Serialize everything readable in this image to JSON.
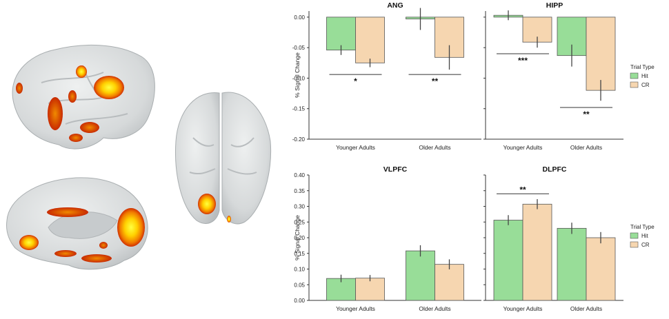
{
  "colors": {
    "hit": "#98dd98",
    "cr": "#f6d6b0",
    "bar_stroke": "#555555",
    "axis": "#333333",
    "brain": "#d9dcdd",
    "activation_hot": "#ffee00",
    "activation_mid": "#f2a100",
    "activation_edge": "#d43a00"
  },
  "legend": {
    "title": "Trial Type",
    "items": [
      "Hit",
      "CR"
    ]
  },
  "brain_images": {
    "lateral_view": "brain-lateral-icon",
    "medial_view": "brain-medial-icon",
    "ventral_view": "brain-ventral-icon"
  },
  "chart_data": [
    {
      "type": "bar",
      "title": "ANG",
      "categories": [
        "Younger Adults",
        "Older Adults"
      ],
      "series": [
        {
          "name": "Hit",
          "values": [
            -0.054,
            -0.003
          ],
          "errors": [
            0.008,
            0.018
          ]
        },
        {
          "name": "CR",
          "values": [
            -0.075,
            -0.066
          ],
          "errors": [
            0.007,
            0.02
          ]
        }
      ],
      "ylabel": "% Signal Change",
      "ylim": [
        -0.2,
        0.01
      ],
      "ticks": [
        0.0,
        -0.05,
        -0.1,
        -0.15,
        -0.2
      ],
      "tick_labels": [
        "0.00",
        "-0.05",
        "-0.10",
        "-0.15",
        "-0.20"
      ],
      "significance": [
        {
          "category": "Younger Adults",
          "label": "*",
          "y": -0.094
        },
        {
          "category": "Older Adults",
          "label": "**",
          "y": -0.094
        }
      ]
    },
    {
      "type": "bar",
      "title": "HIPP",
      "categories": [
        "Younger Adults",
        "Older Adults"
      ],
      "series": [
        {
          "name": "Hit",
          "values": [
            0.003,
            -0.063
          ],
          "errors": [
            0.008,
            0.018
          ]
        },
        {
          "name": "CR",
          "values": [
            -0.041,
            -0.12
          ],
          "errors": [
            0.009,
            0.017
          ]
        }
      ],
      "ylabel": "",
      "ylim": [
        -0.2,
        0.01
      ],
      "ticks": [
        0.0,
        -0.05,
        -0.1,
        -0.15,
        -0.2
      ],
      "tick_labels": [],
      "significance": [
        {
          "category": "Younger Adults",
          "label": "***",
          "y": -0.06
        },
        {
          "category": "Older Adults",
          "label": "**",
          "y": -0.148
        }
      ]
    },
    {
      "type": "bar",
      "title": "VLPFC",
      "categories": [
        "Younger Adults",
        "Older Adults"
      ],
      "series": [
        {
          "name": "Hit",
          "values": [
            0.07,
            0.158
          ],
          "errors": [
            0.012,
            0.018
          ]
        },
        {
          "name": "CR",
          "values": [
            0.071,
            0.115
          ],
          "errors": [
            0.01,
            0.016
          ]
        }
      ],
      "ylabel": "% Signal Change",
      "ylim": [
        0,
        0.4
      ],
      "ticks": [
        0.0,
        0.05,
        0.1,
        0.15,
        0.2,
        0.25,
        0.3,
        0.35,
        0.4
      ],
      "tick_labels": [
        "0.00",
        "0.05",
        "0.10",
        "0.15",
        "0.20",
        "0.25",
        "0.30",
        "0.35",
        "0.40"
      ],
      "significance": []
    },
    {
      "type": "bar",
      "title": "DLPFC",
      "categories": [
        "Younger Adults",
        "Older Adults"
      ],
      "series": [
        {
          "name": "Hit",
          "values": [
            0.256,
            0.23
          ],
          "errors": [
            0.016,
            0.018
          ]
        },
        {
          "name": "CR",
          "values": [
            0.307,
            0.2
          ],
          "errors": [
            0.016,
            0.018
          ]
        }
      ],
      "ylabel": "",
      "ylim": [
        0,
        0.4
      ],
      "ticks": [
        0.0,
        0.05,
        0.1,
        0.15,
        0.2,
        0.25,
        0.3,
        0.35,
        0.4
      ],
      "tick_labels": [],
      "significance": [
        {
          "category": "Younger Adults",
          "label": "**",
          "y": 0.34
        }
      ]
    }
  ]
}
